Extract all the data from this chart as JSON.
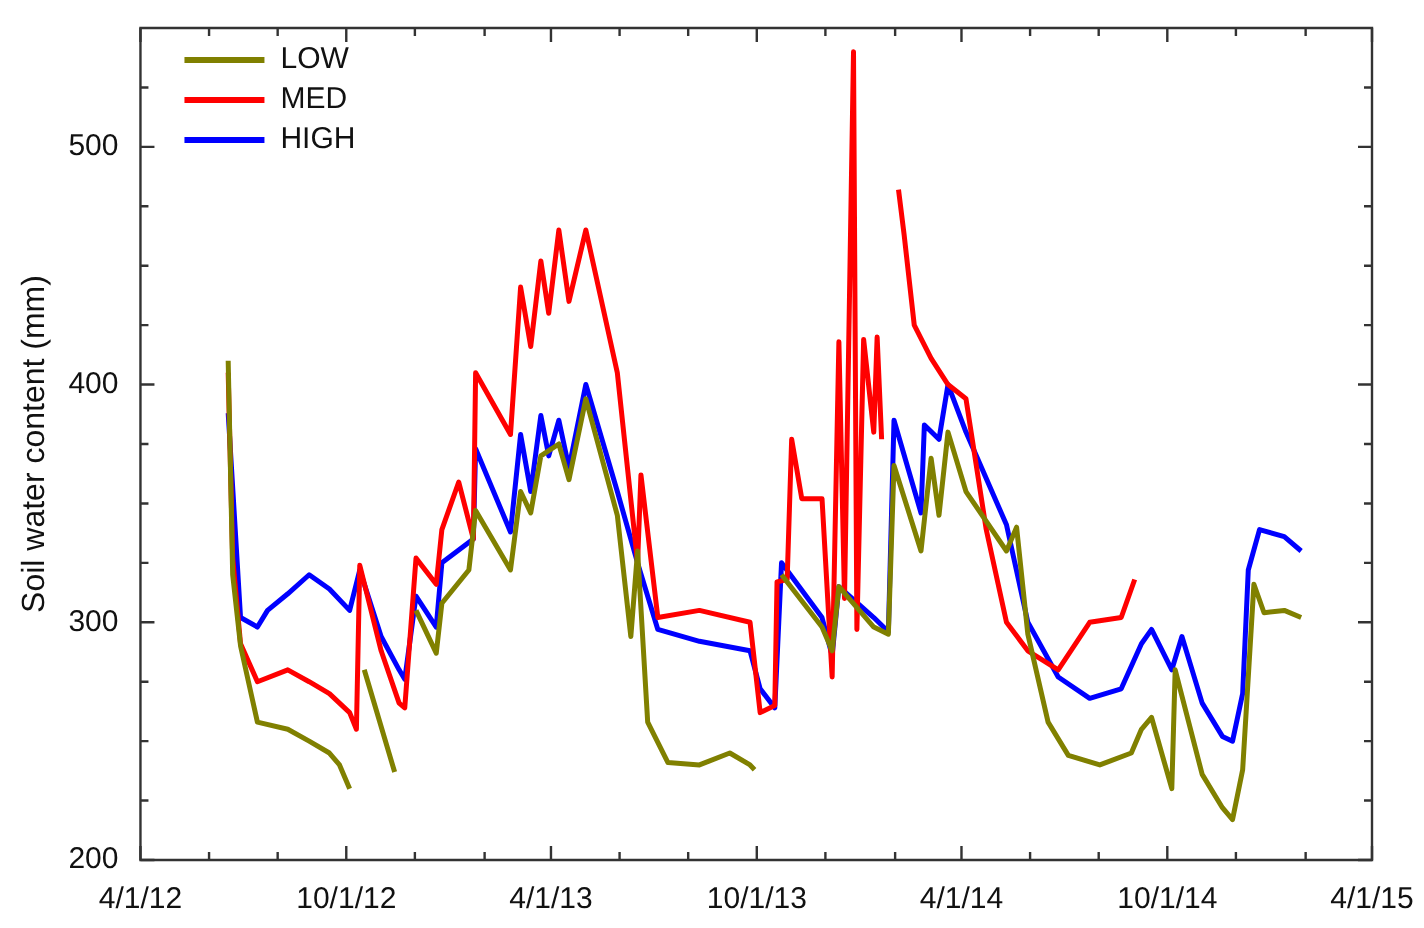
{
  "chart_data": {
    "type": "line",
    "ylabel": "Soil water content (mm)",
    "legend": "top left",
    "grid": false,
    "marker": "none",
    "line_style": "solid",
    "xlim": [
      "2012-04-01",
      "2015-04-01"
    ],
    "xticks": [
      {
        "value": "2012-04-01",
        "label": "4/1/12"
      },
      {
        "value": "2012-06-01",
        "label": null
      },
      {
        "value": "2012-08-01",
        "label": null
      },
      {
        "value": "2012-10-01",
        "label": "10/1/12"
      },
      {
        "value": "2012-12-01",
        "label": null
      },
      {
        "value": "2013-02-01",
        "label": null
      },
      {
        "value": "2013-04-01",
        "label": "4/1/13"
      },
      {
        "value": "2013-06-01",
        "label": null
      },
      {
        "value": "2013-08-01",
        "label": null
      },
      {
        "value": "2013-10-01",
        "label": "10/1/13"
      },
      {
        "value": "2013-12-01",
        "label": null
      },
      {
        "value": "2014-02-01",
        "label": null
      },
      {
        "value": "2014-04-01",
        "label": "4/1/14"
      },
      {
        "value": "2014-06-01",
        "label": null
      },
      {
        "value": "2014-08-01",
        "label": null
      },
      {
        "value": "2014-10-01",
        "label": "10/1/14"
      },
      {
        "value": "2014-12-01",
        "label": null
      },
      {
        "value": "2015-02-01",
        "label": null
      },
      {
        "value": "2015-04-01",
        "label": "4/1/15"
      }
    ],
    "ylim": [
      200,
      550
    ],
    "yticks": [
      200,
      {
        "value": 225,
        "label": null
      },
      {
        "value": 250,
        "label": null
      },
      {
        "value": 275,
        "label": null
      },
      300,
      {
        "value": 325,
        "label": null
      },
      {
        "value": 350,
        "label": null
      },
      {
        "value": 375,
        "label": null
      },
      400,
      {
        "value": 425,
        "label": null
      },
      {
        "value": 450,
        "label": null
      },
      {
        "value": 475,
        "label": null
      },
      500,
      {
        "value": 525,
        "label": null
      }
    ],
    "series": [
      {
        "name": "LOW",
        "color": "#808000",
        "x": [
          "2012-06-18",
          "2012-06-22",
          "2012-06-29",
          "2012-07-14",
          "2012-08-10",
          "2012-08-29",
          "2012-09-16",
          "2012-09-25",
          "2012-10-04",
          "2012-10-10",
          "2012-10-17",
          "2012-11-13",
          "2012-11-22",
          "2012-12-02",
          "2012-12-20",
          "2012-12-25",
          "2013-01-18",
          "2013-01-24",
          "2013-02-24",
          "2013-03-05",
          "2013-03-14",
          "2013-03-23",
          "2013-04-08",
          "2013-04-17",
          "2013-05-02",
          "2013-05-30",
          "2013-06-11",
          "2013-06-17",
          "2013-06-26",
          "2013-07-14",
          "2013-08-11",
          "2013-09-07",
          "2013-09-25",
          "2013-09-29",
          "2013-10-04",
          "2013-10-23",
          "2013-11-28",
          "2013-12-07",
          "2013-12-13",
          "2014-01-13",
          "2014-01-26",
          "2014-01-31",
          "2014-02-24",
          "2014-03-05",
          "2014-03-12",
          "2014-03-20",
          "2014-04-05",
          "2014-05-11",
          "2014-05-20",
          "2014-05-30",
          "2014-06-17",
          "2014-07-05",
          "2014-08-02",
          "2014-08-30",
          "2014-09-08",
          "2014-09-17",
          "2014-10-05",
          "2014-10-08",
          "2014-11-01",
          "2014-11-19",
          "2014-11-28",
          "2014-12-07",
          "2014-12-17",
          "2014-12-26",
          "2015-01-13",
          "2015-01-28"
        ],
        "values": [
          410,
          320,
          290,
          258,
          255,
          250,
          245,
          240,
          230,
          null,
          280,
          237,
          null,
          305,
          287,
          308,
          322,
          347,
          322,
          355,
          346,
          370,
          375,
          360,
          394,
          345,
          294,
          330,
          258,
          241,
          240,
          245,
          240,
          238,
          null,
          320,
          298,
          288,
          315,
          298,
          295,
          366,
          330,
          369,
          345,
          380,
          355,
          330,
          340,
          295,
          258,
          244,
          240,
          245,
          255,
          260,
          230,
          280,
          236,
          222,
          217,
          238,
          316,
          304,
          305,
          302
        ]
      },
      {
        "name": "MED",
        "color": "#ff0000",
        "x": [
          "2012-06-18",
          "2012-06-22",
          "2012-06-29",
          "2012-07-14",
          "2012-08-10",
          "2012-08-29",
          "2012-09-16",
          "2012-10-04",
          "2012-10-10",
          "2012-10-13",
          "2012-11-01",
          "2012-11-17",
          "2012-11-22",
          "2012-12-02",
          "2012-12-20",
          "2012-12-25",
          "2013-01-09",
          "2013-01-22",
          "2013-01-24",
          "2013-02-24",
          "2013-03-05",
          "2013-03-14",
          "2013-03-23",
          "2013-03-30",
          "2013-04-08",
          "2013-04-17",
          "2013-05-02",
          "2013-05-30",
          "2013-06-17",
          "2013-06-20",
          "2013-07-05",
          "2013-08-11",
          "2013-09-25",
          "2013-10-04",
          "2013-10-17",
          "2013-10-19",
          "2013-10-28",
          "2013-11-01",
          "2013-11-10",
          "2013-11-28",
          "2013-12-07",
          "2013-12-13",
          "2013-12-18",
          "2013-12-26",
          "2013-12-29",
          "2014-01-04",
          "2014-01-13",
          "2014-01-16",
          "2014-01-20",
          "2014-01-26",
          "2014-02-04",
          "2014-02-09",
          "2014-02-18",
          "2014-03-05",
          "2014-03-20",
          "2014-04-05",
          "2014-04-23",
          "2014-05-11",
          "2014-05-30",
          "2014-06-26",
          "2014-07-24",
          "2014-08-21",
          "2014-09-02"
        ],
        "values": [
          405,
          327,
          291,
          275,
          280,
          275,
          270,
          262,
          255,
          324,
          288,
          266,
          264,
          327,
          316,
          339,
          359,
          335,
          405,
          379,
          441,
          416,
          452,
          430,
          465,
          435,
          465,
          405,
          325,
          362,
          302,
          305,
          300,
          262,
          265,
          317,
          318,
          377,
          352,
          352,
          277,
          418,
          310,
          540,
          297,
          419,
          380,
          420,
          377,
          null,
          482,
          463,
          425,
          411,
          400,
          394,
          339,
          300,
          288,
          280,
          300,
          302,
          318
        ]
      },
      {
        "name": "HIGH",
        "color": "#0000ff",
        "x": [
          "2012-06-18",
          "2012-06-29",
          "2012-07-14",
          "2012-07-23",
          "2012-08-10",
          "2012-08-29",
          "2012-09-16",
          "2012-10-04",
          "2012-10-13",
          "2012-11-01",
          "2012-11-17",
          "2012-11-22",
          "2012-12-02",
          "2012-12-20",
          "2012-12-25",
          "2013-01-22",
          "2013-01-24",
          "2013-02-24",
          "2013-03-05",
          "2013-03-14",
          "2013-03-23",
          "2013-03-30",
          "2013-04-08",
          "2013-04-17",
          "2013-05-02",
          "2013-05-30",
          "2013-06-17",
          "2013-07-05",
          "2013-08-11",
          "2013-09-25",
          "2013-10-04",
          "2013-10-17",
          "2013-10-23",
          "2013-11-28",
          "2013-12-07",
          "2013-12-13",
          "2014-01-13",
          "2014-01-26",
          "2014-01-31",
          "2014-02-24",
          "2014-02-27",
          "2014-03-12",
          "2014-03-20",
          "2014-04-05",
          "2014-05-11",
          "2014-05-30",
          "2014-06-26",
          "2014-07-24",
          "2014-08-21",
          "2014-09-08",
          "2014-09-17",
          "2014-10-05",
          "2014-10-14",
          "2014-11-01",
          "2014-11-19",
          "2014-11-28",
          "2014-12-07",
          "2014-12-12",
          "2014-12-22",
          "2015-01-13",
          "2015-01-28"
        ],
        "values": [
          388,
          302,
          298,
          305,
          312,
          320,
          314,
          305,
          322,
          294,
          280,
          276,
          311,
          298,
          325,
          335,
          373,
          338,
          379,
          355,
          387,
          370,
          385,
          365,
          400,
          355,
          325,
          297,
          292,
          288,
          272,
          264,
          325,
          302,
          286,
          315,
          302,
          296,
          385,
          346,
          383,
          377,
          400,
          380,
          341,
          300,
          277,
          268,
          272,
          291,
          297,
          280,
          294,
          266,
          252,
          250,
          270,
          322,
          339,
          336,
          330
        ]
      }
    ]
  }
}
